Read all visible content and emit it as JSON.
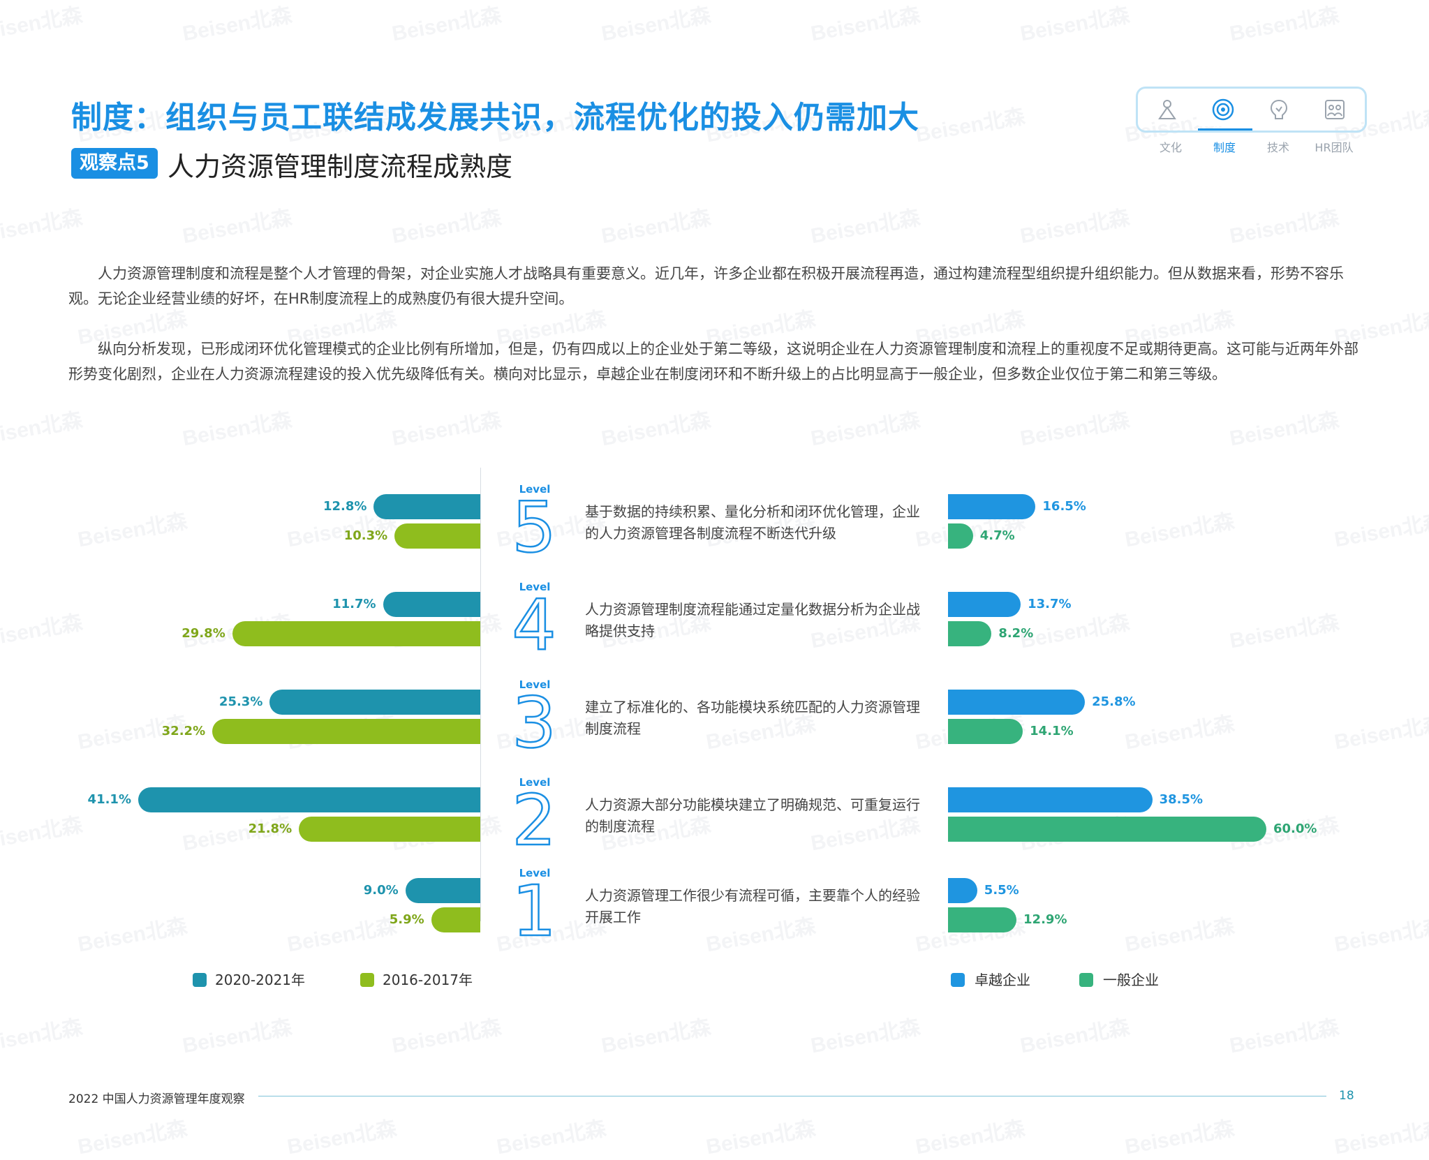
{
  "header": {
    "title": "制度：组织与员工联结成发展共识，流程优化的投入仍需加大",
    "badge": "观察点5",
    "subtitle": "人力资源管理制度流程成熟度"
  },
  "nav": {
    "items": [
      {
        "label": "文化",
        "icon": "culture-icon"
      },
      {
        "label": "制度",
        "icon": "system-icon"
      },
      {
        "label": "技术",
        "icon": "technology-icon"
      },
      {
        "label": "HR团队",
        "icon": "hr-team-icon"
      }
    ],
    "active_index": 1
  },
  "body": {
    "paragraph1": "人力资源管理制度和流程是整个人才管理的骨架，对企业实施人才战略具有重要意义。近几年，许多企业都在积极开展流程再造，通过构建流程型组织提升组织能力。但从数据来看，形势不容乐观。无论企业经营业绩的好坏，在HR制度流程上的成熟度仍有很大提升空间。",
    "paragraph2": "纵向分析发现，已形成闭环优化管理模式的企业比例有所增加，但是，仍有四成以上的企业处于第二等级，这说明企业在人力资源管理制度和流程上的重视度不足或期待更高。这可能与近两年外部形势变化剧烈，企业在人力资源流程建设的投入优先级降低有关。横向对比显示，卓越企业在制度闭环和不断升级上的占比明显高于一般企业，但多数企业仅位于第二和第三等级。"
  },
  "chart_data": {
    "type": "bar",
    "orientation": "horizontal-butterfly",
    "level_word": "Level",
    "categories": [
      "5",
      "4",
      "3",
      "2",
      "1"
    ],
    "descriptions": [
      "基于数据的持续积累、量化分析和闭环优化管理，企业的人力资源管理各制度流程不断迭代升级",
      "人力资源管理制度流程能通过定量化数据分析为企业战略提供支持",
      "建立了标准化的、各功能模块系统匹配的人力资源管理制度流程",
      "人力资源大部分功能模块建立了明确规范、可重复运行的制度流程",
      "人力资源管理工作很少有流程可循，主要靠个人的经验开展工作"
    ],
    "left": {
      "series": [
        {
          "name": "2020-2021年",
          "color": "#1e93ad",
          "values": [
            12.8,
            11.7,
            25.3,
            41.1,
            9.0
          ],
          "labels": [
            "12.8%",
            "11.7%",
            "25.3%",
            "41.1%",
            "9.0%"
          ]
        },
        {
          "name": "2016-2017年",
          "color": "#8fbd1e",
          "values": [
            10.3,
            29.8,
            32.2,
            21.8,
            5.9
          ],
          "labels": [
            "10.3%",
            "29.8%",
            "32.2%",
            "21.8%",
            "5.9%"
          ]
        }
      ]
    },
    "right": {
      "series": [
        {
          "name": "卓越企业",
          "color": "#1f95e0",
          "values": [
            16.5,
            13.7,
            25.8,
            38.5,
            5.5
          ],
          "labels": [
            "16.5%",
            "13.7%",
            "25.8%",
            "38.5%",
            "5.5%"
          ]
        },
        {
          "name": "一般企业",
          "color": "#37b37e",
          "values": [
            4.7,
            8.2,
            14.1,
            60.0,
            12.9
          ],
          "labels": [
            "4.7%",
            "8.2%",
            "14.1%",
            "60.0%",
            "12.9%"
          ]
        }
      ]
    },
    "xlim": [
      0,
      60
    ],
    "legend_position": "bottom"
  },
  "watermark_text": "Beisen北森",
  "footer": {
    "report_title": "2022 中国人力资源管理年度观察",
    "page_number": "18"
  }
}
